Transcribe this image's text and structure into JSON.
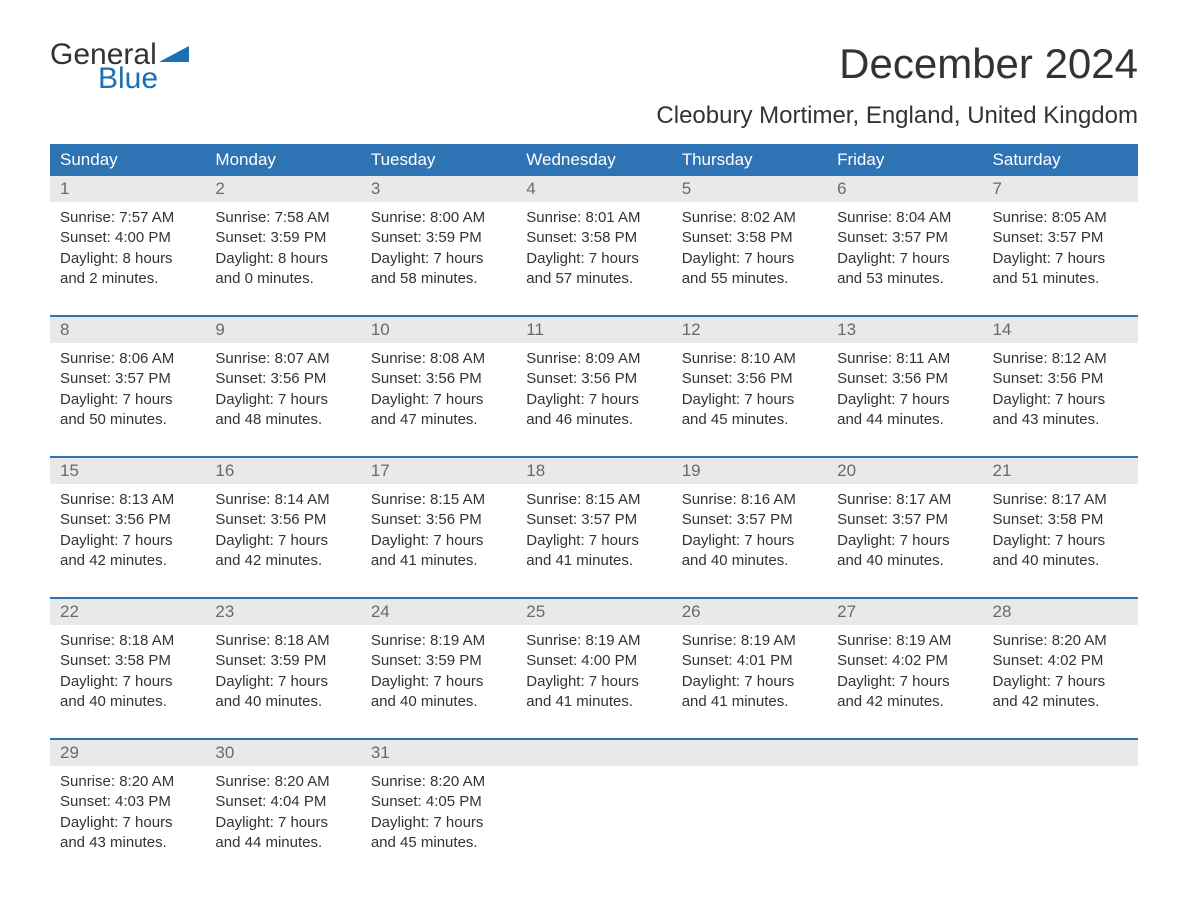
{
  "logo": {
    "line1": "General",
    "line2": "Blue",
    "color_text": "#333333",
    "color_blue": "#1a6fb5"
  },
  "title": "December 2024",
  "location": "Cleobury Mortimer, England, United Kingdom",
  "colors": {
    "header_bg": "#2e74b5",
    "header_text": "#ffffff",
    "daynum_bg": "#e9e9e9",
    "daynum_text": "#6a6a6a",
    "body_text": "#333333",
    "rule": "#2e74b5",
    "page_bg": "#ffffff"
  },
  "typography": {
    "title_fontsize": 42,
    "location_fontsize": 24,
    "header_fontsize": 17,
    "body_fontsize": 15
  },
  "columns": [
    "Sunday",
    "Monday",
    "Tuesday",
    "Wednesday",
    "Thursday",
    "Friday",
    "Saturday"
  ],
  "weeks": [
    [
      {
        "n": "1",
        "sr": "7:57 AM",
        "ss": "4:00 PM",
        "dl": "8 hours and 2 minutes."
      },
      {
        "n": "2",
        "sr": "7:58 AM",
        "ss": "3:59 PM",
        "dl": "8 hours and 0 minutes."
      },
      {
        "n": "3",
        "sr": "8:00 AM",
        "ss": "3:59 PM",
        "dl": "7 hours and 58 minutes."
      },
      {
        "n": "4",
        "sr": "8:01 AM",
        "ss": "3:58 PM",
        "dl": "7 hours and 57 minutes."
      },
      {
        "n": "5",
        "sr": "8:02 AM",
        "ss": "3:58 PM",
        "dl": "7 hours and 55 minutes."
      },
      {
        "n": "6",
        "sr": "8:04 AM",
        "ss": "3:57 PM",
        "dl": "7 hours and 53 minutes."
      },
      {
        "n": "7",
        "sr": "8:05 AM",
        "ss": "3:57 PM",
        "dl": "7 hours and 51 minutes."
      }
    ],
    [
      {
        "n": "8",
        "sr": "8:06 AM",
        "ss": "3:57 PM",
        "dl": "7 hours and 50 minutes."
      },
      {
        "n": "9",
        "sr": "8:07 AM",
        "ss": "3:56 PM",
        "dl": "7 hours and 48 minutes."
      },
      {
        "n": "10",
        "sr": "8:08 AM",
        "ss": "3:56 PM",
        "dl": "7 hours and 47 minutes."
      },
      {
        "n": "11",
        "sr": "8:09 AM",
        "ss": "3:56 PM",
        "dl": "7 hours and 46 minutes."
      },
      {
        "n": "12",
        "sr": "8:10 AM",
        "ss": "3:56 PM",
        "dl": "7 hours and 45 minutes."
      },
      {
        "n": "13",
        "sr": "8:11 AM",
        "ss": "3:56 PM",
        "dl": "7 hours and 44 minutes."
      },
      {
        "n": "14",
        "sr": "8:12 AM",
        "ss": "3:56 PM",
        "dl": "7 hours and 43 minutes."
      }
    ],
    [
      {
        "n": "15",
        "sr": "8:13 AM",
        "ss": "3:56 PM",
        "dl": "7 hours and 42 minutes."
      },
      {
        "n": "16",
        "sr": "8:14 AM",
        "ss": "3:56 PM",
        "dl": "7 hours and 42 minutes."
      },
      {
        "n": "17",
        "sr": "8:15 AM",
        "ss": "3:56 PM",
        "dl": "7 hours and 41 minutes."
      },
      {
        "n": "18",
        "sr": "8:15 AM",
        "ss": "3:57 PM",
        "dl": "7 hours and 41 minutes."
      },
      {
        "n": "19",
        "sr": "8:16 AM",
        "ss": "3:57 PM",
        "dl": "7 hours and 40 minutes."
      },
      {
        "n": "20",
        "sr": "8:17 AM",
        "ss": "3:57 PM",
        "dl": "7 hours and 40 minutes."
      },
      {
        "n": "21",
        "sr": "8:17 AM",
        "ss": "3:58 PM",
        "dl": "7 hours and 40 minutes."
      }
    ],
    [
      {
        "n": "22",
        "sr": "8:18 AM",
        "ss": "3:58 PM",
        "dl": "7 hours and 40 minutes."
      },
      {
        "n": "23",
        "sr": "8:18 AM",
        "ss": "3:59 PM",
        "dl": "7 hours and 40 minutes."
      },
      {
        "n": "24",
        "sr": "8:19 AM",
        "ss": "3:59 PM",
        "dl": "7 hours and 40 minutes."
      },
      {
        "n": "25",
        "sr": "8:19 AM",
        "ss": "4:00 PM",
        "dl": "7 hours and 41 minutes."
      },
      {
        "n": "26",
        "sr": "8:19 AM",
        "ss": "4:01 PM",
        "dl": "7 hours and 41 minutes."
      },
      {
        "n": "27",
        "sr": "8:19 AM",
        "ss": "4:02 PM",
        "dl": "7 hours and 42 minutes."
      },
      {
        "n": "28",
        "sr": "8:20 AM",
        "ss": "4:02 PM",
        "dl": "7 hours and 42 minutes."
      }
    ],
    [
      {
        "n": "29",
        "sr": "8:20 AM",
        "ss": "4:03 PM",
        "dl": "7 hours and 43 minutes."
      },
      {
        "n": "30",
        "sr": "8:20 AM",
        "ss": "4:04 PM",
        "dl": "7 hours and 44 minutes."
      },
      {
        "n": "31",
        "sr": "8:20 AM",
        "ss": "4:05 PM",
        "dl": "7 hours and 45 minutes."
      },
      null,
      null,
      null,
      null
    ]
  ],
  "labels": {
    "sunrise": "Sunrise:",
    "sunset": "Sunset:",
    "daylight": "Daylight:"
  }
}
